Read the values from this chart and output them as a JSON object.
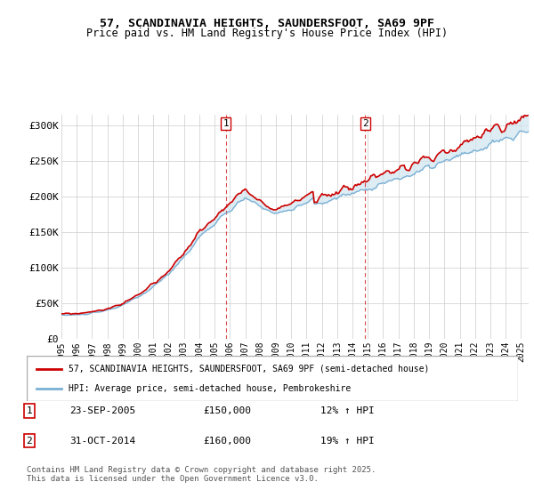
{
  "title_line1": "57, SCANDINAVIA HEIGHTS, SAUNDERSFOOT, SA69 9PF",
  "title_line2": "Price paid vs. HM Land Registry's House Price Index (HPI)",
  "ylabel_ticks": [
    "£0",
    "£50K",
    "£100K",
    "£150K",
    "£200K",
    "£250K",
    "£300K"
  ],
  "ytick_vals": [
    0,
    50000,
    100000,
    150000,
    200000,
    250000,
    300000
  ],
  "ylim": [
    0,
    310000
  ],
  "xlim_start": 1995.0,
  "xlim_end": 2025.5,
  "legend_line1": "57, SCANDINAVIA HEIGHTS, SAUNDERSFOOT, SA69 9PF (semi-detached house)",
  "legend_line2": "HPI: Average price, semi-detached house, Pembrokeshire",
  "line_color_red": "#cc0000",
  "line_color_blue": "#7ab0d4",
  "vline_color": "#cc0000",
  "fill_color": "#d0e4f0",
  "bg_color": "#f0f4f8",
  "transaction1": {
    "label": "1",
    "date": "23-SEP-2005",
    "price": "£150,000",
    "hpi": "12% ↑ HPI",
    "x": 2005.73
  },
  "transaction2": {
    "label": "2",
    "date": "31-OCT-2014",
    "price": "£160,000",
    "hpi": "19% ↑ HPI",
    "x": 2014.83
  },
  "footer": "Contains HM Land Registry data © Crown copyright and database right 2025.\nThis data is licensed under the Open Government Licence v3.0.",
  "x_ticks": [
    1995,
    1996,
    1997,
    1998,
    1999,
    2000,
    2001,
    2002,
    2003,
    2004,
    2005,
    2006,
    2007,
    2008,
    2009,
    2010,
    2011,
    2012,
    2013,
    2014,
    2015,
    2016,
    2017,
    2018,
    2019,
    2020,
    2021,
    2022,
    2023,
    2024,
    2025
  ]
}
